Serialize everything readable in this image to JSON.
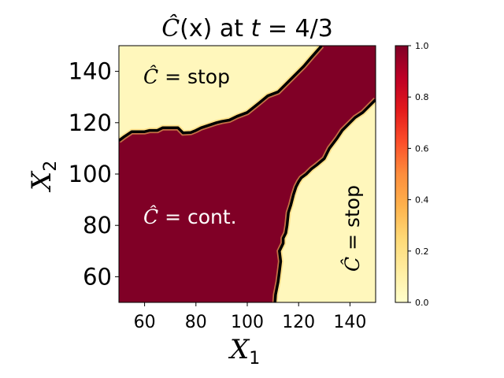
{
  "chart_data": {
    "type": "heatmap",
    "title": "Ĉ(x) at t = 4/3",
    "title_parts": {
      "symbol": "Ĉ",
      "arg": "(x) at ",
      "t": "t",
      "eq": " = 4/3"
    },
    "xlabel": "X",
    "xlabel_sub": "1",
    "ylabel": "X",
    "ylabel_sub": "2",
    "xlim": [
      50,
      150
    ],
    "ylim": [
      50,
      150
    ],
    "xticks": [
      "60",
      "80",
      "100",
      "120",
      "140"
    ],
    "yticks": [
      "60",
      "80",
      "100",
      "120",
      "140"
    ],
    "colorbar": {
      "min": 0.0,
      "max": 1.0,
      "ticks": [
        "0.0",
        "0.2",
        "0.4",
        "0.6",
        "0.8",
        "1.0"
      ],
      "colormap": "YlOrRd",
      "colors": [
        "#ffffcc",
        "#ffeda0",
        "#fed976",
        "#feb24c",
        "#fd8d3c",
        "#fc4e2a",
        "#e31a1c",
        "#bd0026",
        "#800026"
      ]
    },
    "annotations": [
      {
        "text": "Ĉ = stop",
        "region": "upper-left",
        "color": "#000000"
      },
      {
        "text": "Ĉ = cont.",
        "region": "middle-left",
        "color": "#ffffff"
      },
      {
        "text": "Ĉ = stop",
        "region": "lower-right",
        "color": "#000000",
        "rotation": -90
      }
    ],
    "boundaries": [
      {
        "name": "upper",
        "points": [
          [
            50,
            113
          ],
          [
            52,
            114.5
          ],
          [
            55,
            116.5
          ],
          [
            60,
            116.5
          ],
          [
            62,
            117
          ],
          [
            65,
            117
          ],
          [
            67,
            118
          ],
          [
            73,
            118
          ],
          [
            75,
            116
          ],
          [
            78,
            116.2
          ],
          [
            80,
            117
          ],
          [
            82,
            118
          ],
          [
            85,
            119
          ],
          [
            88,
            120
          ],
          [
            90,
            120.5
          ],
          [
            93,
            121
          ],
          [
            96,
            122.5
          ],
          [
            100,
            124
          ],
          [
            105,
            128
          ],
          [
            108,
            130.5
          ],
          [
            112,
            132
          ],
          [
            118,
            138
          ],
          [
            122,
            142
          ],
          [
            125,
            145.5
          ],
          [
            129,
            150
          ]
        ]
      },
      {
        "name": "lower",
        "points": [
          [
            110.8,
            50
          ],
          [
            111,
            53
          ],
          [
            112,
            58
          ],
          [
            112.5,
            62
          ],
          [
            113,
            66
          ],
          [
            112.5,
            70
          ],
          [
            114,
            73
          ],
          [
            114,
            75
          ],
          [
            115,
            77
          ],
          [
            115.5,
            80
          ],
          [
            116,
            85
          ],
          [
            117,
            88
          ],
          [
            118,
            92
          ],
          [
            119,
            95
          ],
          [
            120,
            97
          ],
          [
            121,
            98.5
          ],
          [
            123,
            100
          ],
          [
            125,
            102
          ],
          [
            127,
            103.5
          ],
          [
            130,
            106
          ],
          [
            132,
            110
          ],
          [
            135,
            114
          ],
          [
            137,
            117
          ],
          [
            140,
            120
          ],
          [
            142,
            122
          ],
          [
            145,
            124
          ],
          [
            148,
            127
          ],
          [
            150,
            129
          ]
        ]
      }
    ]
  }
}
